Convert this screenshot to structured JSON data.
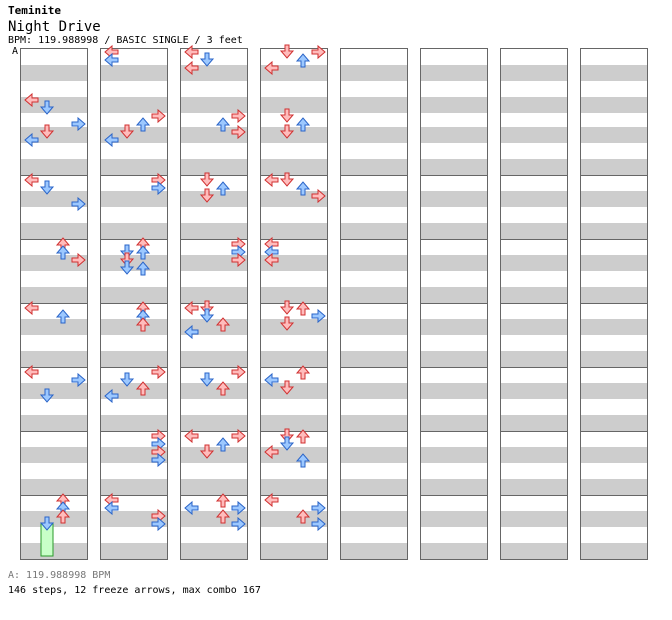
{
  "artist": "Teminite",
  "song_title": "Night Drive",
  "info_line": "BPM: 119.988998 / BASIC SINGLE / 3 feet",
  "bpm_marker": "A",
  "footer": {
    "bpm": "A: 119.988998 BPM",
    "stats": "146 steps, 12 freeze arrows, max combo 167"
  },
  "colors": {
    "quarter_note": "#ffbcbc",
    "quarter_note_edge": "#d03030",
    "eighth_note": "#9cc8ff",
    "eighth_note_edge": "#2a64c8",
    "freeze_body": "#c8ffc8",
    "freeze_edge": "#2a9a2a",
    "stripe": "#cdcdcd"
  },
  "chart_data": {
    "type": "step-chart",
    "lanes": [
      "left",
      "down",
      "up",
      "right"
    ],
    "beats_per_measure": 4,
    "measures_per_column": 8,
    "column_count": 8,
    "rows_per_measure": 8,
    "notes": [
      [
        0,
        0,
        6,
        0
      ],
      [
        0,
        0,
        7,
        1
      ],
      [
        0,
        1,
        1,
        3
      ],
      [
        0,
        1,
        2,
        1
      ],
      [
        0,
        1,
        3,
        0
      ],
      [
        0,
        2,
        0,
        0
      ],
      [
        0,
        2,
        1,
        1
      ],
      [
        0,
        2,
        3,
        3
      ],
      [
        0,
        3,
        0,
        2
      ],
      [
        0,
        3,
        1,
        2
      ],
      [
        0,
        3,
        2,
        3
      ],
      [
        0,
        4,
        0,
        0
      ],
      [
        0,
        4,
        1,
        2
      ],
      [
        0,
        5,
        0,
        0
      ],
      [
        0,
        5,
        1,
        3
      ],
      [
        0,
        5,
        3,
        1
      ],
      [
        0,
        7,
        0,
        2
      ],
      [
        0,
        7,
        1,
        2
      ],
      [
        0,
        7,
        2,
        2
      ],
      [
        1,
        0,
        0,
        0
      ],
      [
        1,
        0,
        1,
        0
      ],
      [
        1,
        1,
        0,
        3
      ],
      [
        1,
        1,
        1,
        2
      ],
      [
        1,
        1,
        2,
        1
      ],
      [
        1,
        1,
        3,
        0
      ],
      [
        1,
        2,
        0,
        3
      ],
      [
        1,
        2,
        1,
        3
      ],
      [
        1,
        3,
        0,
        2
      ],
      [
        1,
        3,
        1,
        1
      ],
      [
        1,
        3,
        1,
        2
      ],
      [
        1,
        3,
        2,
        1
      ],
      [
        1,
        3,
        3,
        1
      ],
      [
        1,
        3,
        3,
        2
      ],
      [
        1,
        4,
        0,
        2
      ],
      [
        1,
        4,
        1,
        2
      ],
      [
        1,
        4,
        2,
        2
      ],
      [
        1,
        5,
        0,
        3
      ],
      [
        1,
        5,
        1,
        1
      ],
      [
        1,
        5,
        2,
        2
      ],
      [
        1,
        5,
        3,
        0
      ],
      [
        1,
        6,
        0,
        3
      ],
      [
        1,
        6,
        1,
        3
      ],
      [
        1,
        6,
        2,
        3
      ],
      [
        1,
        6,
        3,
        3
      ],
      [
        1,
        7,
        0,
        0
      ],
      [
        1,
        7,
        1,
        0
      ],
      [
        1,
        7,
        2,
        3
      ],
      [
        1,
        7,
        3,
        3
      ],
      [
        2,
        0,
        0,
        0
      ],
      [
        2,
        0,
        1,
        1
      ],
      [
        2,
        0,
        2,
        0
      ],
      [
        2,
        1,
        0,
        3
      ],
      [
        2,
        1,
        1,
        2
      ],
      [
        2,
        1,
        2,
        3
      ],
      [
        2,
        2,
        0,
        1
      ],
      [
        2,
        2,
        1,
        2
      ],
      [
        2,
        2,
        2,
        1
      ],
      [
        2,
        3,
        0,
        3
      ],
      [
        2,
        3,
        1,
        3
      ],
      [
        2,
        3,
        2,
        3
      ],
      [
        2,
        4,
        0,
        0
      ],
      [
        2,
        4,
        0,
        1
      ],
      [
        2,
        4,
        1,
        1
      ],
      [
        2,
        4,
        2,
        2
      ],
      [
        2,
        4,
        3,
        0
      ],
      [
        2,
        5,
        0,
        3
      ],
      [
        2,
        5,
        1,
        1
      ],
      [
        2,
        5,
        2,
        2
      ],
      [
        2,
        6,
        0,
        0
      ],
      [
        2,
        6,
        0,
        3
      ],
      [
        2,
        6,
        1,
        2
      ],
      [
        2,
        6,
        2,
        1
      ],
      [
        2,
        7,
        0,
        2
      ],
      [
        2,
        7,
        1,
        0
      ],
      [
        2,
        7,
        1,
        3
      ],
      [
        2,
        7,
        2,
        2
      ],
      [
        2,
        7,
        3,
        3
      ],
      [
        3,
        0,
        0,
        1
      ],
      [
        3,
        0,
        0,
        3
      ],
      [
        3,
        0,
        1,
        2
      ],
      [
        3,
        0,
        2,
        0
      ],
      [
        3,
        1,
        0,
        1
      ],
      [
        3,
        1,
        1,
        2
      ],
      [
        3,
        1,
        2,
        1
      ],
      [
        3,
        2,
        0,
        0
      ],
      [
        3,
        2,
        0,
        1
      ],
      [
        3,
        2,
        1,
        2
      ],
      [
        3,
        2,
        2,
        3
      ],
      [
        3,
        3,
        0,
        0
      ],
      [
        3,
        3,
        1,
        0
      ],
      [
        3,
        3,
        2,
        0
      ],
      [
        3,
        4,
        0,
        1
      ],
      [
        3,
        4,
        0,
        2
      ],
      [
        3,
        4,
        1,
        3
      ],
      [
        3,
        4,
        2,
        1
      ],
      [
        3,
        5,
        0,
        2
      ],
      [
        3,
        5,
        1,
        0
      ],
      [
        3,
        5,
        2,
        1
      ],
      [
        3,
        6,
        0,
        1
      ],
      [
        3,
        6,
        0,
        2
      ],
      [
        3,
        6,
        1,
        1
      ],
      [
        3,
        6,
        2,
        0
      ],
      [
        3,
        6,
        3,
        2
      ],
      [
        3,
        7,
        0,
        0
      ],
      [
        3,
        7,
        1,
        3
      ],
      [
        3,
        7,
        2,
        2
      ],
      [
        3,
        7,
        3,
        3
      ]
    ],
    "freezes": [
      [
        0,
        7,
        3,
        1,
        4
      ]
    ]
  }
}
